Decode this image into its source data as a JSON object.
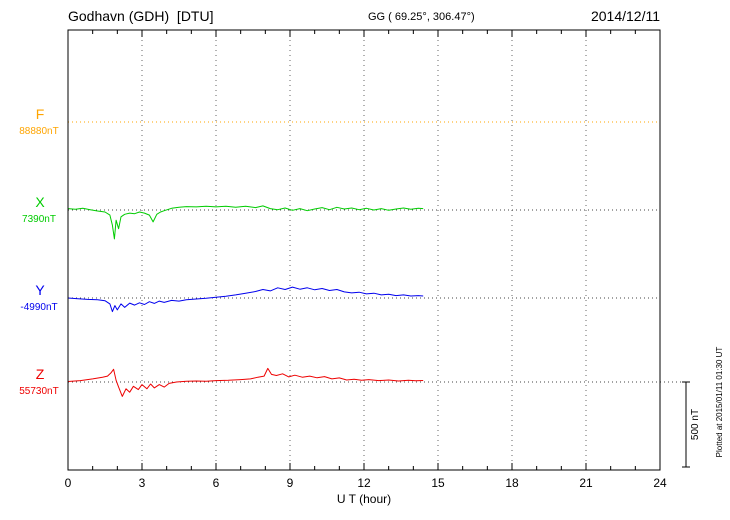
{
  "header": {
    "station": "Godhavn (GDH)  [DTU]",
    "coords": "GG ( 69.25°, 306.47°)",
    "date": "2014/12/11"
  },
  "axis": {
    "x_label": "U T (hour)",
    "x_ticks": [
      0,
      3,
      6,
      9,
      12,
      15,
      18,
      21,
      24
    ],
    "x_range": [
      0,
      24
    ]
  },
  "scale_bar": {
    "label": "500 nT",
    "nT": 500
  },
  "footer_note": "Plotted at 2015/01/11 01:30 UT",
  "chart_data": {
    "type": "line",
    "title": "Godhavn (GDH) [DTU] magnetogram",
    "date": "2014/12/11",
    "xlabel": "U T (hour)",
    "x_range": [
      0,
      24
    ],
    "x_tick_step": 3,
    "scale_bar_nT": 500,
    "data_end_hour": 14.4,
    "series": [
      {
        "name": "F",
        "baseline_label": "88880nT",
        "baseline_nT": 88880,
        "color": "#FFA500",
        "style": "dotted",
        "points": [
          [
            0,
            0
          ],
          [
            14.4,
            0
          ]
        ]
      },
      {
        "name": "X",
        "baseline_label": "7390nT",
        "baseline_nT": 7390,
        "color": "#00CC00",
        "style": "solid",
        "points": [
          [
            0,
            8
          ],
          [
            0.3,
            4
          ],
          [
            0.6,
            10
          ],
          [
            0.9,
            2
          ],
          [
            1.2,
            -6
          ],
          [
            1.5,
            -12
          ],
          [
            1.7,
            -30
          ],
          [
            1.8,
            -90
          ],
          [
            1.88,
            -170
          ],
          [
            1.95,
            -60
          ],
          [
            2.05,
            -110
          ],
          [
            2.15,
            -40
          ],
          [
            2.3,
            -25
          ],
          [
            2.5,
            -18
          ],
          [
            2.7,
            -22
          ],
          [
            2.9,
            -12
          ],
          [
            3.1,
            -18
          ],
          [
            3.3,
            -30
          ],
          [
            3.45,
            -70
          ],
          [
            3.6,
            -25
          ],
          [
            3.75,
            -12
          ],
          [
            3.9,
            -4
          ],
          [
            4.2,
            10
          ],
          [
            4.5,
            16
          ],
          [
            4.8,
            20
          ],
          [
            5.2,
            18
          ],
          [
            5.6,
            22
          ],
          [
            6.0,
            18
          ],
          [
            6.4,
            22
          ],
          [
            6.8,
            16
          ],
          [
            7.2,
            22
          ],
          [
            7.6,
            14
          ],
          [
            7.9,
            24
          ],
          [
            8.2,
            8
          ],
          [
            8.5,
            2
          ],
          [
            8.8,
            12
          ],
          [
            9.1,
            -2
          ],
          [
            9.4,
            8
          ],
          [
            9.7,
            -4
          ],
          [
            10.0,
            6
          ],
          [
            10.3,
            14
          ],
          [
            10.6,
            2
          ],
          [
            10.9,
            16
          ],
          [
            11.2,
            6
          ],
          [
            11.5,
            12
          ],
          [
            11.8,
            2
          ],
          [
            12.1,
            10
          ],
          [
            12.4,
            0
          ],
          [
            12.7,
            8
          ],
          [
            13.0,
            -2
          ],
          [
            13.3,
            6
          ],
          [
            13.6,
            12
          ],
          [
            13.9,
            4
          ],
          [
            14.2,
            10
          ],
          [
            14.4,
            8
          ]
        ]
      },
      {
        "name": "Y",
        "baseline_label": "-4990nT",
        "baseline_nT": -4990,
        "color": "#0000EE",
        "style": "solid",
        "points": [
          [
            0,
            0
          ],
          [
            0.4,
            -4
          ],
          [
            0.8,
            -8
          ],
          [
            1.2,
            -10
          ],
          [
            1.5,
            -16
          ],
          [
            1.7,
            -35
          ],
          [
            1.8,
            -80
          ],
          [
            1.9,
            -45
          ],
          [
            2.0,
            -70
          ],
          [
            2.15,
            -35
          ],
          [
            2.3,
            -55
          ],
          [
            2.5,
            -30
          ],
          [
            2.7,
            -42
          ],
          [
            2.9,
            -28
          ],
          [
            3.1,
            -38
          ],
          [
            3.3,
            -22
          ],
          [
            3.5,
            -32
          ],
          [
            3.7,
            -18
          ],
          [
            3.9,
            -26
          ],
          [
            4.2,
            -14
          ],
          [
            4.5,
            -18
          ],
          [
            4.8,
            -10
          ],
          [
            5.2,
            -6
          ],
          [
            5.6,
            -2
          ],
          [
            6.0,
            4
          ],
          [
            6.4,
            10
          ],
          [
            6.8,
            18
          ],
          [
            7.2,
            28
          ],
          [
            7.6,
            38
          ],
          [
            7.9,
            50
          ],
          [
            8.2,
            42
          ],
          [
            8.5,
            60
          ],
          [
            8.8,
            50
          ],
          [
            9.1,
            64
          ],
          [
            9.4,
            52
          ],
          [
            9.7,
            60
          ],
          [
            10.0,
            48
          ],
          [
            10.3,
            56
          ],
          [
            10.6,
            44
          ],
          [
            10.9,
            50
          ],
          [
            11.2,
            36
          ],
          [
            11.5,
            30
          ],
          [
            11.8,
            34
          ],
          [
            12.1,
            24
          ],
          [
            12.4,
            28
          ],
          [
            12.7,
            18
          ],
          [
            13.0,
            22
          ],
          [
            13.3,
            14
          ],
          [
            13.6,
            18
          ],
          [
            13.9,
            12
          ],
          [
            14.2,
            14
          ],
          [
            14.4,
            12
          ]
        ]
      },
      {
        "name": "Z",
        "baseline_label": "55730nT",
        "baseline_nT": 55730,
        "color": "#EE0000",
        "style": "solid",
        "points": [
          [
            0,
            3
          ],
          [
            0.5,
            8
          ],
          [
            1.0,
            18
          ],
          [
            1.4,
            28
          ],
          [
            1.6,
            35
          ],
          [
            1.75,
            55
          ],
          [
            1.85,
            75
          ],
          [
            1.95,
            10
          ],
          [
            2.05,
            -30
          ],
          [
            2.2,
            -85
          ],
          [
            2.35,
            -40
          ],
          [
            2.5,
            -60
          ],
          [
            2.65,
            -25
          ],
          [
            2.85,
            -45
          ],
          [
            3.0,
            -15
          ],
          [
            3.2,
            -40
          ],
          [
            3.35,
            -12
          ],
          [
            3.5,
            -35
          ],
          [
            3.7,
            -15
          ],
          [
            3.9,
            -30
          ],
          [
            4.1,
            -8
          ],
          [
            4.4,
            0
          ],
          [
            4.8,
            4
          ],
          [
            5.2,
            6
          ],
          [
            5.6,
            4
          ],
          [
            6.0,
            8
          ],
          [
            6.5,
            10
          ],
          [
            7.0,
            14
          ],
          [
            7.4,
            18
          ],
          [
            7.7,
            28
          ],
          [
            7.95,
            35
          ],
          [
            8.1,
            80
          ],
          [
            8.25,
            45
          ],
          [
            8.45,
            38
          ],
          [
            8.7,
            48
          ],
          [
            8.95,
            30
          ],
          [
            9.2,
            40
          ],
          [
            9.5,
            28
          ],
          [
            9.8,
            35
          ],
          [
            10.1,
            25
          ],
          [
            10.4,
            32
          ],
          [
            10.7,
            18
          ],
          [
            11.0,
            24
          ],
          [
            11.3,
            12
          ],
          [
            11.6,
            16
          ],
          [
            11.9,
            10
          ],
          [
            12.2,
            14
          ],
          [
            12.6,
            8
          ],
          [
            13.0,
            12
          ],
          [
            13.4,
            6
          ],
          [
            13.8,
            10
          ],
          [
            14.1,
            7
          ],
          [
            14.4,
            9
          ]
        ]
      }
    ]
  }
}
